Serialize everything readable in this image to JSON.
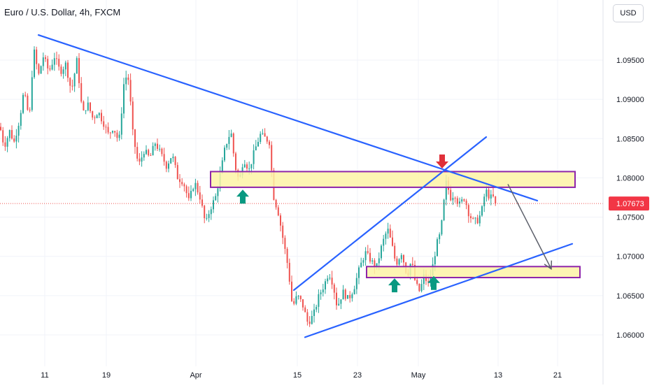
{
  "header": {
    "title": "Euro / U.S. Dollar, 4h, FXCM",
    "currency": "USD"
  },
  "colors": {
    "up": "#26a69a",
    "down": "#ef5350",
    "trendline": "#2962ff",
    "zone_fill": "#fdf3a6",
    "zone_border": "#8e24aa",
    "arrow_up": "#089981",
    "arrow_down": "#e0303a",
    "projection": "#5d606b",
    "last_price_bg": "#f23645"
  },
  "chart_data": {
    "type": "candlestick",
    "symbol": "EURUSD",
    "timeframe": "4h",
    "source": "FXCM",
    "x_tick_labels": [
      "11",
      "19",
      "Apr",
      "15",
      "23",
      "May",
      "13",
      "21"
    ],
    "y_tick_labels": [
      "1.09500",
      "1.09000",
      "1.08500",
      "1.08000",
      "1.07500",
      "1.07000",
      "1.06500",
      "1.06000"
    ],
    "y_ticks": [
      1.095,
      1.09,
      1.085,
      1.08,
      1.075,
      1.07,
      1.065,
      1.06
    ],
    "ylim": [
      1.0552,
      1.1
    ],
    "last_price": 1.07673,
    "last_price_label": "1.07673",
    "series_anchors": [
      [
        0,
        1.0865
      ],
      [
        6,
        1.084
      ],
      [
        14,
        1.086
      ],
      [
        20,
        1.0845
      ],
      [
        28,
        1.0875
      ],
      [
        34,
        1.091
      ],
      [
        42,
        1.0875
      ],
      [
        48,
        1.0965
      ],
      [
        55,
        1.093
      ],
      [
        62,
        1.0955
      ],
      [
        70,
        1.0935
      ],
      [
        78,
        1.0955
      ],
      [
        86,
        1.0935
      ],
      [
        94,
        1.0945
      ],
      [
        102,
        1.091
      ],
      [
        110,
        1.095
      ],
      [
        118,
        1.088
      ],
      [
        125,
        1.0895
      ],
      [
        133,
        1.0875
      ],
      [
        140,
        1.0885
      ],
      [
        148,
        1.087
      ],
      [
        155,
        1.0855
      ],
      [
        162,
        1.0865
      ],
      [
        170,
        1.0845
      ],
      [
        178,
        1.093
      ],
      [
        184,
        1.0925
      ],
      [
        190,
        1.0855
      ],
      [
        198,
        1.0815
      ],
      [
        206,
        1.0835
      ],
      [
        214,
        1.0825
      ],
      [
        222,
        1.0845
      ],
      [
        230,
        1.083
      ],
      [
        238,
        1.0815
      ],
      [
        246,
        1.083
      ],
      [
        254,
        1.08
      ],
      [
        262,
        1.0795
      ],
      [
        270,
        1.077
      ],
      [
        278,
        1.0795
      ],
      [
        286,
        1.0775
      ],
      [
        294,
        1.074
      ],
      [
        300,
        1.076
      ],
      [
        308,
        1.0775
      ],
      [
        316,
        1.081
      ],
      [
        322,
        1.084
      ],
      [
        330,
        1.086
      ],
      [
        336,
        1.0815
      ],
      [
        342,
        1.0795
      ],
      [
        348,
        1.0825
      ],
      [
        356,
        1.081
      ],
      [
        364,
        1.0835
      ],
      [
        372,
        1.0855
      ],
      [
        380,
        1.085
      ],
      [
        386,
        1.0845
      ],
      [
        390,
        1.078
      ],
      [
        398,
        1.0755
      ],
      [
        406,
        1.0715
      ],
      [
        412,
        1.0685
      ],
      [
        418,
        1.0635
      ],
      [
        425,
        1.065
      ],
      [
        432,
        1.064
      ],
      [
        440,
        1.0615
      ],
      [
        448,
        1.0625
      ],
      [
        456,
        1.065
      ],
      [
        464,
        1.0665
      ],
      [
        470,
        1.068
      ],
      [
        476,
        1.0665
      ],
      [
        482,
        1.0635
      ],
      [
        490,
        1.0655
      ],
      [
        498,
        1.0645
      ],
      [
        506,
        1.066
      ],
      [
        514,
        1.0685
      ],
      [
        522,
        1.0705
      ],
      [
        530,
        1.0695
      ],
      [
        538,
        1.0685
      ],
      [
        546,
        1.0715
      ],
      [
        554,
        1.0735
      ],
      [
        560,
        1.0715
      ],
      [
        566,
        1.069
      ],
      [
        574,
        1.0705
      ],
      [
        582,
        1.0675
      ],
      [
        588,
        1.0695
      ],
      [
        594,
        1.0665
      ],
      [
        600,
        1.0655
      ],
      [
        606,
        1.0675
      ],
      [
        612,
        1.0665
      ],
      [
        618,
        1.0685
      ],
      [
        624,
        1.0715
      ],
      [
        630,
        1.073
      ],
      [
        634,
        1.0765
      ],
      [
        638,
        1.0795
      ],
      [
        644,
        1.0775
      ],
      [
        650,
        1.078
      ],
      [
        656,
        1.0765
      ],
      [
        664,
        1.0775
      ],
      [
        670,
        1.0755
      ],
      [
        676,
        1.0745
      ],
      [
        682,
        1.0745
      ],
      [
        688,
        1.0755
      ],
      [
        694,
        1.0785
      ],
      [
        700,
        1.0775
      ],
      [
        706,
        1.0775
      ],
      [
        710,
        1.0767
      ]
    ]
  },
  "annotations": {
    "trendlines": [
      {
        "name": "resistance-trendline",
        "from": [
          55,
          1.0982
        ],
        "to": [
          768,
          1.0771
        ]
      },
      {
        "name": "support-trendline",
        "from": [
          436,
          1.0597
        ],
        "to": [
          818,
          1.0716
        ]
      },
      {
        "name": "channel-trendline",
        "from": [
          420,
          1.0657
        ],
        "to": [
          695,
          1.0852
        ]
      }
    ],
    "zones": [
      {
        "name": "upper-zone",
        "x_range": [
          301,
          822
        ],
        "price_range": [
          1.0788,
          1.0808
        ]
      },
      {
        "name": "lower-zone",
        "x_range": [
          524,
          829
        ],
        "price_range": [
          1.0673,
          1.0687
        ]
      }
    ],
    "markers": [
      {
        "name": "up-arrow-marker",
        "direction": "up",
        "x": 347,
        "price": 1.0785
      },
      {
        "name": "up-arrow-marker",
        "direction": "up",
        "x": 564,
        "price": 1.0672
      },
      {
        "name": "up-arrow-marker",
        "direction": "up",
        "x": 620,
        "price": 1.0675
      },
      {
        "name": "down-arrow-marker",
        "direction": "down",
        "x": 632,
        "price": 1.0812
      }
    ],
    "projection": {
      "name": "projection-arrow",
      "points": [
        [
          726,
          1.0792
        ],
        [
          788,
          1.0684
        ]
      ]
    }
  }
}
